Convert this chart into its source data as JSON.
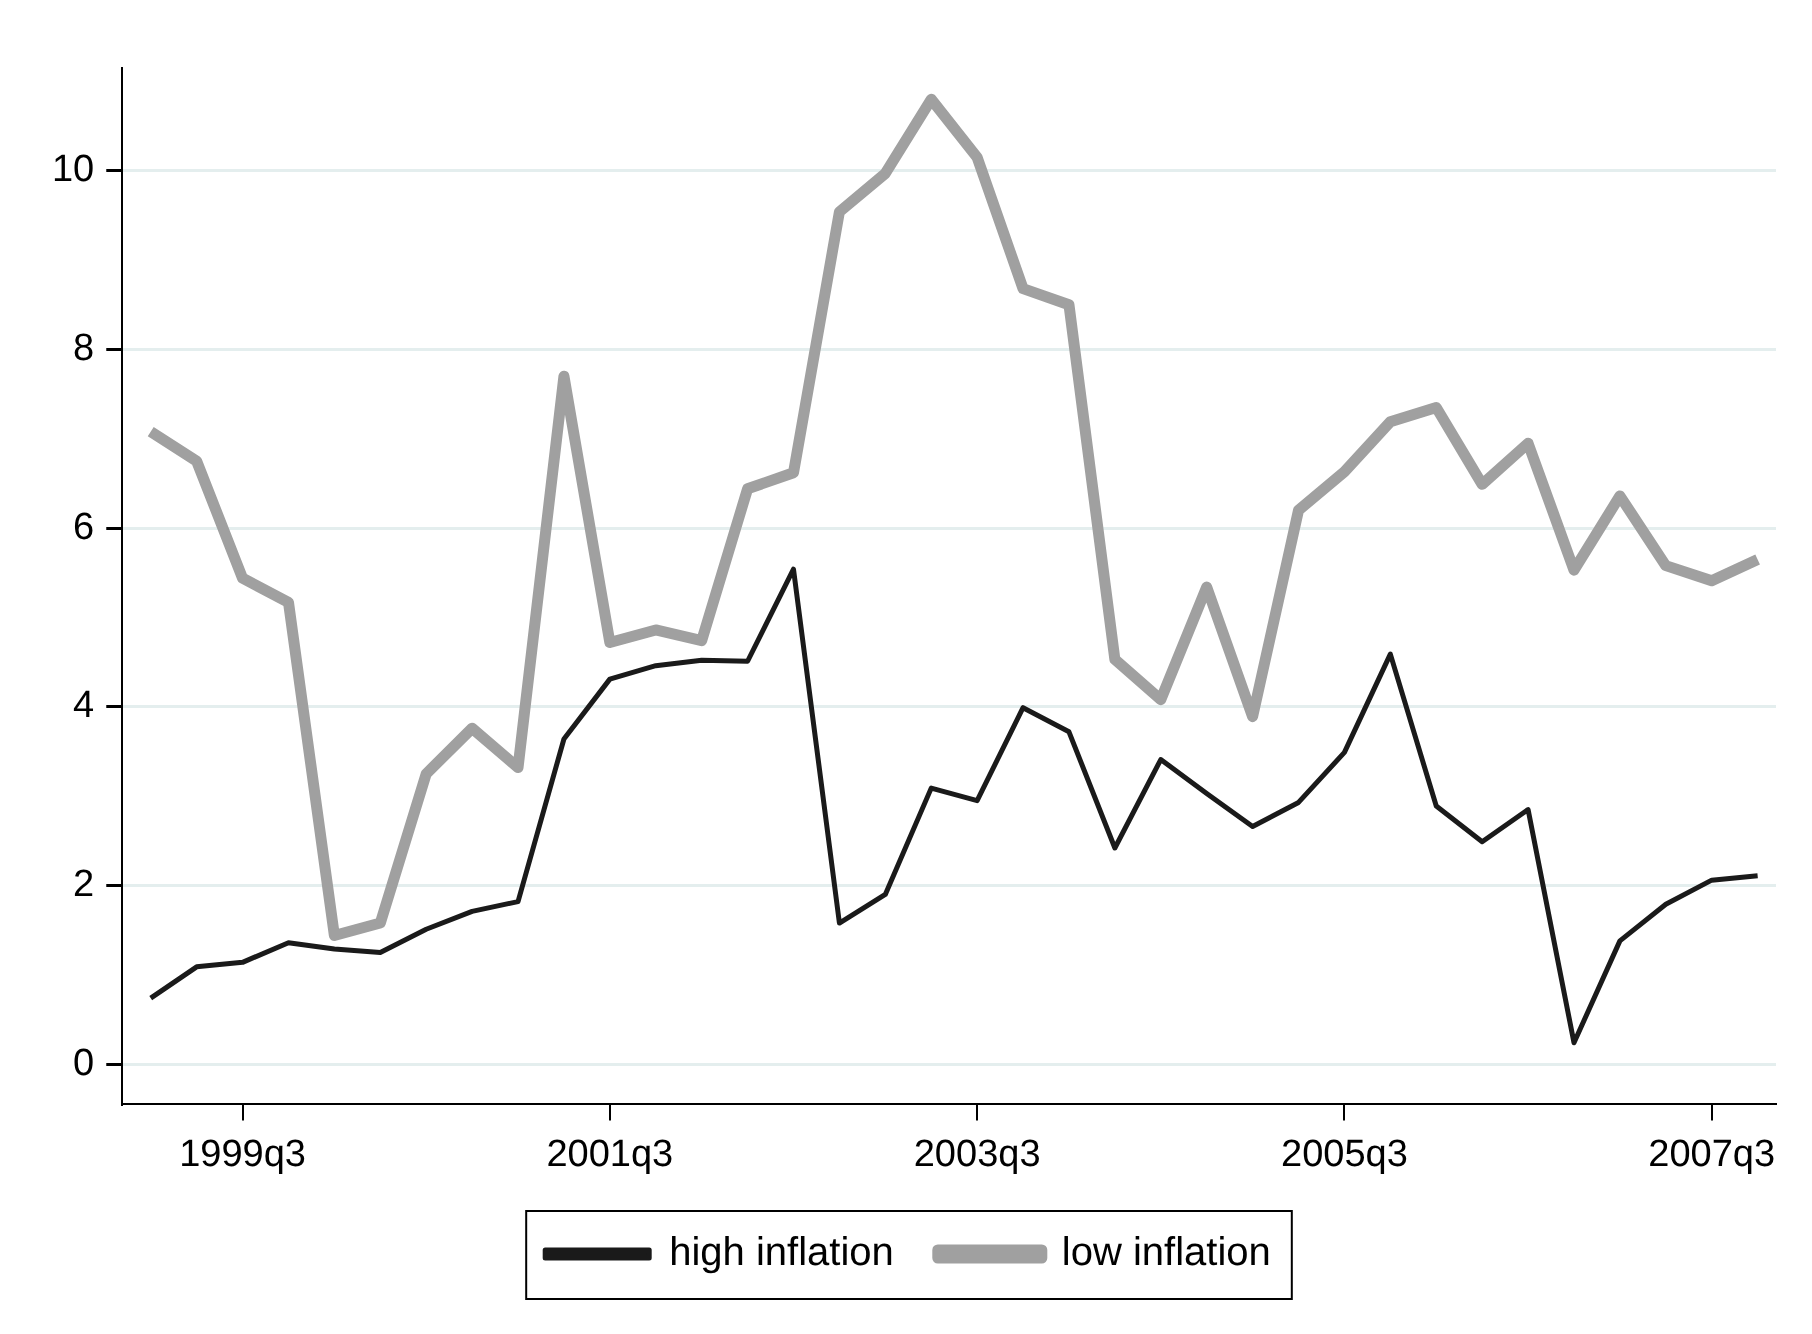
{
  "chart_data": {
    "type": "line",
    "categories": [
      null,
      null,
      "1999q3",
      null,
      null,
      null,
      null,
      null,
      null,
      null,
      "2001q3",
      null,
      null,
      null,
      null,
      null,
      null,
      null,
      "2003q3",
      null,
      null,
      null,
      null,
      null,
      null,
      null,
      "2005q3",
      null,
      null,
      null,
      null,
      null,
      null,
      null,
      "2007q3",
      null
    ],
    "series": [
      {
        "name": "high inflation",
        "color": "#1a1a1a",
        "values": [
          0.74,
          1.09,
          1.14,
          1.36,
          1.29,
          1.25,
          1.51,
          1.71,
          1.82,
          3.64,
          4.31,
          4.46,
          4.52,
          4.51,
          5.54,
          1.58,
          1.9,
          3.09,
          2.95,
          3.99,
          3.72,
          2.42,
          3.41,
          3.03,
          2.66,
          2.93,
          3.49,
          4.59,
          2.89,
          2.49,
          2.85,
          0.24,
          1.38,
          1.79,
          2.06,
          2.11
        ]
      },
      {
        "name": "low inflation",
        "color": "#a0a0a0",
        "values": [
          7.08,
          6.75,
          5.44,
          5.17,
          1.44,
          1.58,
          3.25,
          3.76,
          3.32,
          7.7,
          4.72,
          4.86,
          4.74,
          6.44,
          6.62,
          9.54,
          9.97,
          10.8,
          10.15,
          8.68,
          8.5,
          4.53,
          4.08,
          5.34,
          3.89,
          6.2,
          6.63,
          7.19,
          7.35,
          6.49,
          6.95,
          5.53,
          6.36,
          5.58,
          5.41,
          5.65
        ]
      }
    ],
    "ylim": [
      -0.45,
      11.15
    ],
    "yticks": [
      0,
      2,
      4,
      6,
      8,
      10
    ],
    "grid": "y",
    "legend": "bottom",
    "marker": "none",
    "line_style": "solid"
  }
}
